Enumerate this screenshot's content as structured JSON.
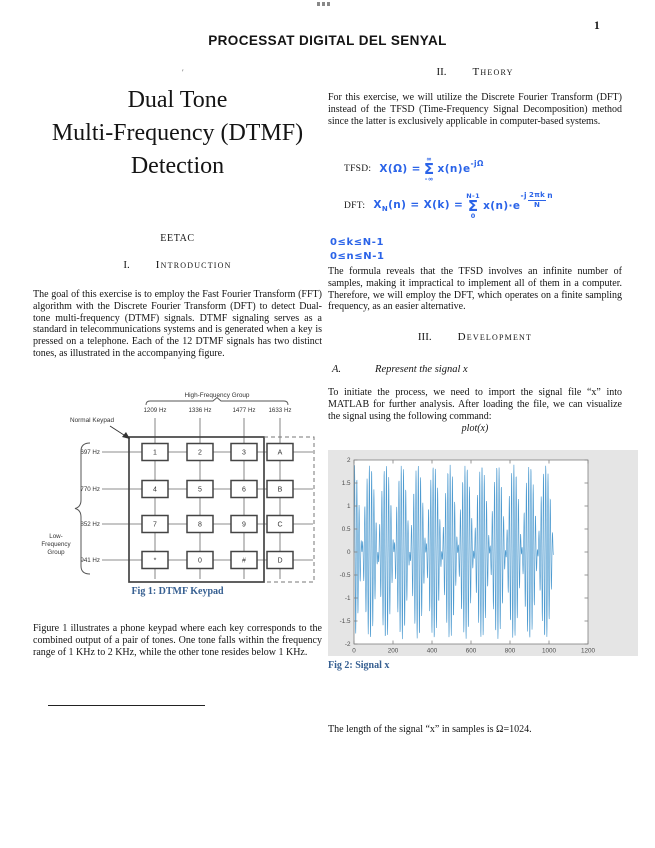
{
  "page": {
    "header": "PROCESSAT DIGITAL DEL SENYAL",
    "number": "1"
  },
  "title": {
    "footnote_mark": "ʹ",
    "lines": [
      "Dual Tone",
      "Multi-Frequency (DTMF)",
      "Detection"
    ],
    "affiliation": "EETAC"
  },
  "sections": {
    "intro": {
      "numeral": "I.",
      "label": "Introduction"
    },
    "theory": {
      "numeral": "II.",
      "label": "Theory"
    },
    "development": {
      "numeral": "III.",
      "label": "Development"
    },
    "sub_a": {
      "numeral": "A.",
      "label": "Represent the signal x"
    }
  },
  "paragraphs": {
    "intro": "The goal of this exercise is to employ the Fast Fourier Transform (FFT) algorithm with the Discrete Fourier Transform (DFT) to detect Dual-tone multi-frequency (DTMF) signals. DTMF signaling serves as a standard in telecommunications systems and is generated when a key is pressed on a telephone. Each of the 12 DTMF signals has two distinct tones, as illustrated in the accompanying figure.",
    "figure1_note": "Figure 1 illustrates a phone keypad where each key corresponds to the combined output of a pair of tones. One tone falls within the frequency range of 1 KHz to 2 KHz, while the other tone resides below 1 KHz.",
    "theory_intro": "For this exercise, we will utilize the Discrete Fourier Transform (DFT) instead of the TFSD (Time-Frequency Signal Decomposition) method since the latter is exclusively applicable in computer-based systems.",
    "theory_conclusion": "The formula reveals that the TFSD involves an infinite number of samples, making it impractical to implement all of them in a computer. Therefore, we will employ the DFT, which operates on a finite sampling frequency, as an easier alternative.",
    "development_intro": "To initiate the process, we need to import the signal file “x” into MATLAB for further analysis. After loading the file, we can visualize the signal using the following command:",
    "plot_command": "plot(x)",
    "length_note": "The length of the signal “x” in samples is Ω=1024."
  },
  "formulas": {
    "ink_color": "#2a63e8",
    "tfsd": {
      "label": "TFSD:",
      "lhs": "X(Ω) =",
      "sum_top": "∞",
      "sum_bot": "-∞",
      "body": "x(n)e",
      "exp": "-jΩ"
    },
    "dft": {
      "label": "DFT:",
      "lhs_base": "X",
      "lhs_sub": "N",
      "lhs_rest": "(n) = X(k) =",
      "sum_top": "N-1",
      "sum_bot": "0",
      "body": "x(n)·e",
      "exp_pre": "-j",
      "frac_num": "2πk",
      "frac_den": "N",
      "exp_post": "n"
    },
    "constraint_k": "0≤k≤N-1",
    "constraint_n": "0≤n≤N-1"
  },
  "figure1": {
    "caption": "Fig 1: DTMF Keypad",
    "high_group_label": "High-Frequency Group",
    "low_group_lines": [
      "Low-",
      "Frequency",
      "Group"
    ],
    "normal_keypad_label": "Normal Keypad",
    "col_freqs": [
      "1209 Hz",
      "1336 Hz",
      "1477 Hz",
      "1633 Hz"
    ],
    "row_freqs": [
      "697 Hz",
      "770 Hz",
      "852 Hz",
      "941 Hz"
    ],
    "keys": [
      [
        "1",
        "2",
        "3",
        "A"
      ],
      [
        "4",
        "5",
        "6",
        "B"
      ],
      [
        "7",
        "8",
        "9",
        "C"
      ],
      [
        "*",
        "0",
        "#",
        "D"
      ]
    ]
  },
  "figure2": {
    "caption": "Fig 2: Signal x"
  },
  "chart_data": {
    "type": "line",
    "title": "",
    "xlabel": "",
    "ylabel": "",
    "xlim": [
      0,
      1200
    ],
    "ylim": [
      -2,
      2
    ],
    "xticks": [
      0,
      200,
      400,
      600,
      800,
      1000,
      1200
    ],
    "yticks": [
      -2,
      -1.5,
      -1,
      -0.5,
      0,
      0.5,
      1,
      1.5,
      2
    ],
    "grid": false,
    "legend": false,
    "line_color": "#3f93cc",
    "background": "#e5e5e5",
    "series": [
      {
        "name": "x",
        "n_samples": 1024,
        "amplitude_peak": 1.9,
        "components": [
          {
            "amp": 0.95,
            "omega_rad_per_sample": 0.5
          },
          {
            "amp": 0.95,
            "omega_rad_per_sample": 0.5767
          }
        ]
      }
    ]
  }
}
